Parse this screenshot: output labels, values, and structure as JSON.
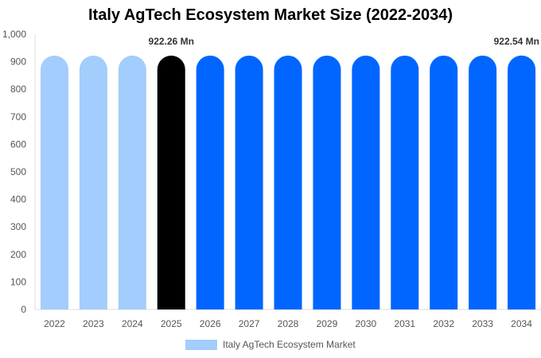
{
  "chart_data": {
    "type": "bar",
    "title": "Italy AgTech Ecosystem Market Size (2022-2034)",
    "categories": [
      "2022",
      "2023",
      "2024",
      "2025",
      "2026",
      "2027",
      "2028",
      "2029",
      "2030",
      "2031",
      "2032",
      "2033",
      "2034"
    ],
    "series": [
      {
        "name": "Italy AgTech Ecosystem Market",
        "values": [
          922.26,
          922.26,
          922.26,
          922.26,
          922.4,
          922.4,
          922.4,
          922.45,
          922.45,
          922.5,
          922.5,
          922.5,
          922.54
        ]
      }
    ],
    "bar_colors": [
      "#a3cdfc",
      "#a3cdfc",
      "#a3cdfc",
      "#000000",
      "#0066ff",
      "#0066ff",
      "#0066ff",
      "#0066ff",
      "#0066ff",
      "#0066ff",
      "#0066ff",
      "#0066ff",
      "#0066ff"
    ],
    "legend_color": "#a3cdfc",
    "data_labels": [
      {
        "category": "2025",
        "text": "922.26 Mn"
      },
      {
        "category": "2034",
        "text": "922.54 Mn"
      }
    ],
    "y_ticks": [
      "0",
      "100",
      "200",
      "300",
      "400",
      "500",
      "600",
      "700",
      "800",
      "900",
      "1,000"
    ],
    "ylim": [
      0,
      1000
    ],
    "grid": false,
    "legend_position": "bottom"
  }
}
